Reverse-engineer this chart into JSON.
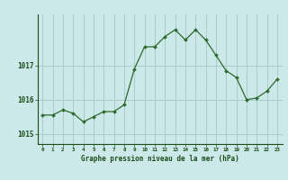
{
  "hours": [
    0,
    1,
    2,
    3,
    4,
    5,
    6,
    7,
    8,
    9,
    10,
    11,
    12,
    13,
    14,
    15,
    16,
    17,
    18,
    19,
    20,
    21,
    22,
    23
  ],
  "pressure": [
    1015.55,
    1015.55,
    1015.7,
    1015.6,
    1015.35,
    1015.5,
    1015.65,
    1015.65,
    1015.85,
    1016.9,
    1017.55,
    1017.55,
    1017.85,
    1018.05,
    1017.75,
    1018.05,
    1017.75,
    1017.3,
    1016.85,
    1016.65,
    1016.0,
    1016.05,
    1016.25,
    1016.6
  ],
  "line_color": "#2d6a2d",
  "bg_color": "#cce8e8",
  "grid_color": "#aacccc",
  "axis_label_color": "#1a4d1a",
  "title": "Graphe pression niveau de la mer (hPa)",
  "yticks": [
    1015,
    1016,
    1017
  ],
  "ylim": [
    1014.7,
    1018.5
  ],
  "xlim": [
    -0.5,
    23.5
  ]
}
